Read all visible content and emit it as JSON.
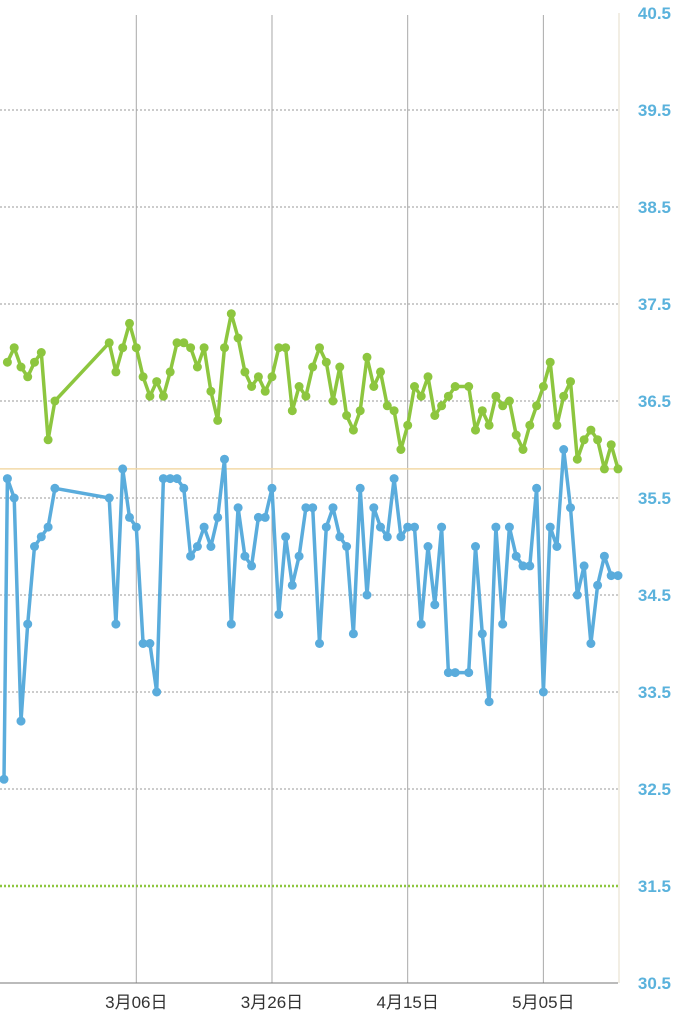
{
  "chart_data": {
    "type": "line",
    "ylim": [
      30.5,
      40.5
    ],
    "yticks": [
      "40.5",
      "39.5",
      "38.5",
      "37.5",
      "36.5",
      "35.5",
      "34.5",
      "33.5",
      "32.5",
      "31.5",
      "30.5"
    ],
    "xticks": [
      {
        "label": "3月06日",
        "day": 64
      },
      {
        "label": "3月26日",
        "day": 84
      },
      {
        "label": "4月15日",
        "day": 104
      },
      {
        "label": "5月05日",
        "day": 124
      }
    ],
    "x_range_days": [
      44.5,
      135
    ],
    "reference_lines": [
      {
        "y": 35.8,
        "color": "#f2d9a8",
        "style": "solid"
      },
      {
        "y": 31.5,
        "color": "#8dc63f",
        "style": "dotted"
      }
    ],
    "series": [
      {
        "color": "#8dc63f",
        "days": [
          45,
          46,
          47,
          48,
          49,
          50,
          51,
          52,
          60,
          61,
          62,
          63,
          64,
          65,
          66,
          67,
          68,
          69,
          70,
          71,
          72,
          73,
          74,
          75,
          76,
          77,
          78,
          79,
          80,
          81,
          82,
          83,
          84,
          85,
          86,
          87,
          88,
          89,
          90,
          91,
          92,
          93,
          94,
          95,
          96,
          97,
          98,
          99,
          100,
          101,
          102,
          103,
          104,
          105,
          106,
          107,
          108,
          109,
          110,
          111,
          113,
          114,
          115,
          116,
          117,
          118,
          119,
          120,
          121,
          122,
          123,
          124,
          125,
          126,
          127,
          128,
          129,
          130,
          131,
          132,
          133,
          134,
          135
        ],
        "values": [
          36.9,
          37.05,
          36.85,
          36.75,
          36.9,
          37.0,
          36.1,
          36.5,
          37.1,
          36.8,
          37.05,
          37.3,
          37.05,
          36.75,
          36.55,
          36.7,
          36.55,
          36.8,
          37.1,
          37.1,
          37.05,
          36.85,
          37.05,
          36.6,
          36.3,
          37.05,
          37.4,
          37.15,
          36.8,
          36.65,
          36.75,
          36.6,
          36.75,
          37.05,
          37.05,
          36.4,
          36.65,
          36.55,
          36.85,
          37.05,
          36.9,
          36.5,
          36.85,
          36.35,
          36.2,
          36.4,
          36.95,
          36.65,
          36.8,
          36.45,
          36.4,
          36.0,
          36.25,
          36.65,
          36.55,
          36.75,
          36.35,
          36.45,
          36.55,
          36.65,
          36.65,
          36.2,
          36.4,
          36.25,
          36.55,
          36.45,
          36.5,
          36.15,
          36.0,
          36.25,
          36.45,
          36.65,
          36.9,
          36.25,
          36.55,
          36.7,
          35.9,
          36.1,
          36.2,
          36.1,
          35.8,
          36.05,
          35.8
        ]
      },
      {
        "color": "#5aacdc",
        "days": [
          44.5,
          45,
          46,
          47,
          48,
          49,
          50,
          51,
          52,
          60,
          61,
          62,
          63,
          64,
          65,
          66,
          67,
          68,
          69,
          70,
          71,
          72,
          73,
          74,
          75,
          76,
          77,
          78,
          79,
          80,
          81,
          82,
          83,
          84,
          85,
          86,
          87,
          88,
          89,
          90,
          91,
          92,
          93,
          94,
          95,
          96,
          97,
          98,
          99,
          100,
          101,
          102,
          103,
          104,
          105,
          106,
          107,
          108,
          109,
          110,
          111,
          113,
          114,
          115,
          116,
          117,
          118,
          119,
          120,
          121,
          122,
          123,
          124,
          125,
          126,
          127,
          128,
          129,
          130,
          131,
          132,
          133,
          134,
          135
        ],
        "values": [
          32.6,
          35.7,
          35.5,
          33.2,
          34.2,
          35.0,
          35.1,
          35.2,
          35.6,
          35.5,
          34.2,
          35.8,
          35.3,
          35.2,
          34.0,
          34.0,
          33.5,
          35.7,
          35.7,
          35.7,
          35.6,
          34.9,
          35.0,
          35.2,
          35.0,
          35.3,
          35.9,
          34.2,
          35.4,
          34.9,
          34.8,
          35.3,
          35.3,
          35.6,
          34.3,
          35.1,
          34.6,
          34.9,
          35.4,
          35.4,
          34.0,
          35.2,
          35.4,
          35.1,
          35.0,
          34.1,
          35.6,
          34.5,
          35.4,
          35.2,
          35.1,
          35.7,
          35.1,
          35.2,
          35.2,
          34.2,
          35.0,
          34.4,
          35.2,
          33.7,
          33.7,
          33.7,
          35.0,
          34.1,
          33.4,
          35.2,
          34.2,
          35.2,
          34.9,
          34.8,
          34.8,
          35.6,
          33.5,
          35.2,
          35.0,
          36.0,
          35.4,
          34.5,
          34.8,
          34.0,
          34.6,
          34.9,
          34.7,
          34.7
        ]
      }
    ]
  }
}
